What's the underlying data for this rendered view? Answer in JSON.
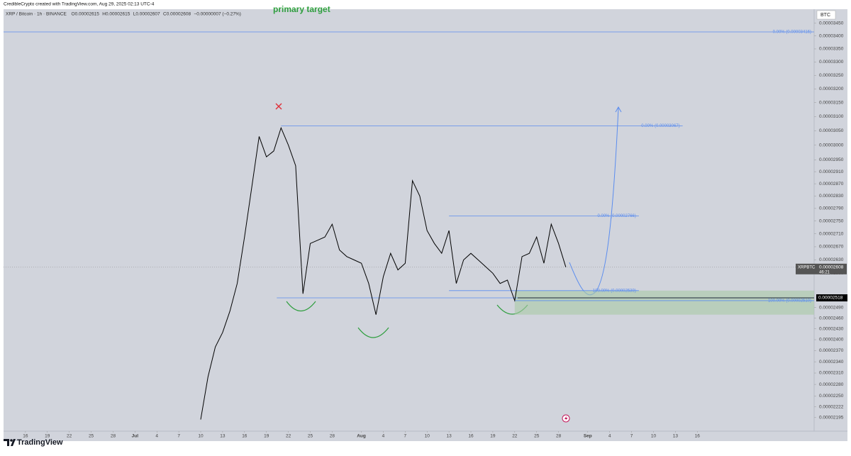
{
  "chart_data": {
    "type": "line",
    "credit": "CredibleCrypto created with TradingView.com, Aug 29, 2025 02:13 UTC-4",
    "title": "XRP / Bitcoin · 1h · BINANCE",
    "ohlc": [
      "O0.00002615",
      "H0.00002615",
      "L0.00002607",
      "C0.00002608",
      "−0.00000007 (−0.27%)"
    ],
    "annotation": "primary target",
    "currency": "BTC",
    "brand": "TradingView",
    "log": true,
    "xlim": [
      "Jun 13",
      "Oct 2"
    ],
    "ylim": [
      2.161e-05,
      3.506e-05
    ],
    "xticks": [
      {
        "value": "Jun 16",
        "label": "16"
      },
      {
        "value": "Jun 19",
        "label": "19"
      },
      {
        "value": "Jun 22",
        "label": "22"
      },
      {
        "value": "Jun 25",
        "label": "25"
      },
      {
        "value": "Jun 28",
        "label": "28"
      },
      {
        "value": "Jul 1",
        "label": "Jul"
      },
      {
        "value": "Jul 4",
        "label": "4"
      },
      {
        "value": "Jul 7",
        "label": "7"
      },
      {
        "value": "Jul 10",
        "label": "10"
      },
      {
        "value": "Jul 13",
        "label": "13"
      },
      {
        "value": "Jul 16",
        "label": "16"
      },
      {
        "value": "Jul 19",
        "label": "19"
      },
      {
        "value": "Jul 22",
        "label": "22"
      },
      {
        "value": "Jul 25",
        "label": "25"
      },
      {
        "value": "Jul 28",
        "label": "28"
      },
      {
        "value": "Aug 1",
        "label": "Aug"
      },
      {
        "value": "Aug 4",
        "label": "4"
      },
      {
        "value": "Aug 7",
        "label": "7"
      },
      {
        "value": "Aug 10",
        "label": "10"
      },
      {
        "value": "Aug 13",
        "label": "13"
      },
      {
        "value": "Aug 16",
        "label": "16"
      },
      {
        "value": "Aug 19",
        "label": "19"
      },
      {
        "value": "Aug 22",
        "label": "22"
      },
      {
        "value": "Aug 25",
        "label": "25"
      },
      {
        "value": "Aug 28",
        "label": "28"
      },
      {
        "value": "Sep 1",
        "label": "Sep"
      },
      {
        "value": "Sep 4",
        "label": "4"
      },
      {
        "value": "Sep 7",
        "label": "7"
      },
      {
        "value": "Sep 10",
        "label": "10"
      },
      {
        "value": "Sep 13",
        "label": "13"
      },
      {
        "value": "Sep 16",
        "label": "16"
      }
    ],
    "yticks": [
      {
        "value": 3.45e-05,
        "label": "0.00003450"
      },
      {
        "value": 3.4e-05,
        "label": "0.00003400"
      },
      {
        "value": 3.35e-05,
        "label": "0.00003350"
      },
      {
        "value": 3.3e-05,
        "label": "0.00003300"
      },
      {
        "value": 3.25e-05,
        "label": "0.00003250"
      },
      {
        "value": 3.2e-05,
        "label": "0.00003200"
      },
      {
        "value": 3.15e-05,
        "label": "0.00003150"
      },
      {
        "value": 3.1e-05,
        "label": "0.00003100"
      },
      {
        "value": 3.05e-05,
        "label": "0.00003050"
      },
      {
        "value": 3e-05,
        "label": "0.00003000"
      },
      {
        "value": 2.95e-05,
        "label": "0.00002950"
      },
      {
        "value": 2.91e-05,
        "label": "0.00002910"
      },
      {
        "value": 2.87e-05,
        "label": "0.00002870"
      },
      {
        "value": 2.83e-05,
        "label": "0.00002830"
      },
      {
        "value": 2.79e-05,
        "label": "0.00002790"
      },
      {
        "value": 2.75e-05,
        "label": "0.00002750"
      },
      {
        "value": 2.71e-05,
        "label": "0.00002710"
      },
      {
        "value": 2.67e-05,
        "label": "0.00002670"
      },
      {
        "value": 2.63e-05,
        "label": "0.00002630"
      },
      {
        "value": 2.59e-05,
        "label": "0.00002590"
      },
      {
        "value": 2.49e-05,
        "label": "0.00002490"
      },
      {
        "value": 2.46e-05,
        "label": "0.00002460"
      },
      {
        "value": 2.43e-05,
        "label": "0.00002430"
      },
      {
        "value": 2.4e-05,
        "label": "0.00002400"
      },
      {
        "value": 2.37e-05,
        "label": "0.00002370"
      },
      {
        "value": 2.34e-05,
        "label": "0.00002340"
      },
      {
        "value": 2.31e-05,
        "label": "0.00002310"
      },
      {
        "value": 2.28e-05,
        "label": "0.00002280"
      },
      {
        "value": 2.25e-05,
        "label": "0.00002250"
      },
      {
        "value": 2.222e-05,
        "label": "0.00002222"
      },
      {
        "value": 2.195e-05,
        "label": "0.00002195"
      }
    ],
    "series": [
      {
        "name": "XRPBTC",
        "color": "#000000",
        "x": [
          "Jul 10",
          "Jul 11",
          "Jul 12",
          "Jul 13",
          "Jul 14",
          "Jul 15",
          "Jul 16",
          "Jul 17",
          "Jul 18",
          "Jul 19",
          "Jul 20",
          "Jul 21",
          "Jul 22",
          "Jul 23",
          "Jul 24",
          "Jul 25",
          "Jul 26",
          "Jul 27",
          "Jul 28",
          "Jul 29",
          "Jul 30",
          "Jul 31",
          "Aug 1",
          "Aug 2",
          "Aug 3",
          "Aug 4",
          "Aug 5",
          "Aug 6",
          "Aug 7",
          "Aug 8",
          "Aug 9",
          "Aug 10",
          "Aug 11",
          "Aug 12",
          "Aug 13",
          "Aug 14",
          "Aug 15",
          "Aug 16",
          "Aug 17",
          "Aug 18",
          "Aug 19",
          "Aug 20",
          "Aug 21",
          "Aug 22",
          "Aug 23",
          "Aug 24",
          "Aug 25",
          "Aug 26",
          "Aug 27",
          "Aug 28",
          "Aug 29"
        ],
        "values": [
          2.19e-05,
          2.3e-05,
          2.38e-05,
          2.42e-05,
          2.48e-05,
          2.56e-05,
          2.7e-05,
          2.86e-05,
          3.03e-05,
          2.96e-05,
          2.98e-05,
          3.06e-05,
          3e-05,
          2.93e-05,
          2.53e-05,
          2.68e-05,
          2.69e-05,
          2.7e-05,
          2.74e-05,
          2.66e-05,
          2.64e-05,
          2.63e-05,
          2.62e-05,
          2.56e-05,
          2.47e-05,
          2.58e-05,
          2.65e-05,
          2.6e-05,
          2.62e-05,
          2.88e-05,
          2.83e-05,
          2.72e-05,
          2.68e-05,
          2.65e-05,
          2.72e-05,
          2.56e-05,
          2.63e-05,
          2.65e-05,
          2.63e-05,
          2.61e-05,
          2.59e-05,
          2.56e-05,
          2.57e-05,
          2.51e-05,
          2.64e-05,
          2.65e-05,
          2.7e-05,
          2.62e-05,
          2.74e-05,
          2.68e-05,
          2.608e-05
        ]
      }
    ],
    "levels": [
      {
        "value": 3.416e-05,
        "label": "0.00% (0.00003416)",
        "from": "Jun 13",
        "to": "Oct 2"
      },
      {
        "value": 3.067e-05,
        "label": "0.00% (0.00003067)",
        "from": "Jul 21",
        "to": "Sep 14"
      },
      {
        "value": 2.766e-05,
        "label": "0.00% (0.00002766)",
        "from": "Aug 13",
        "to": "Sep 8"
      },
      {
        "value": 2.539e-05,
        "label": "100.00% (0.00002539)",
        "from": "Aug 13",
        "to": "Sep 8"
      },
      {
        "value": 2.51e-05,
        "label": "100.00% (0.00002510)",
        "from": "Aug 22",
        "to": "Oct 2"
      }
    ],
    "support": {
      "value": 2.518e-05,
      "label": "0.00002518",
      "from": "Jul 21"
    },
    "last": {
      "name": "XRPBTC",
      "value": 2.608e-05,
      "label": "0.00002608",
      "countdown": "46:21"
    }
  }
}
